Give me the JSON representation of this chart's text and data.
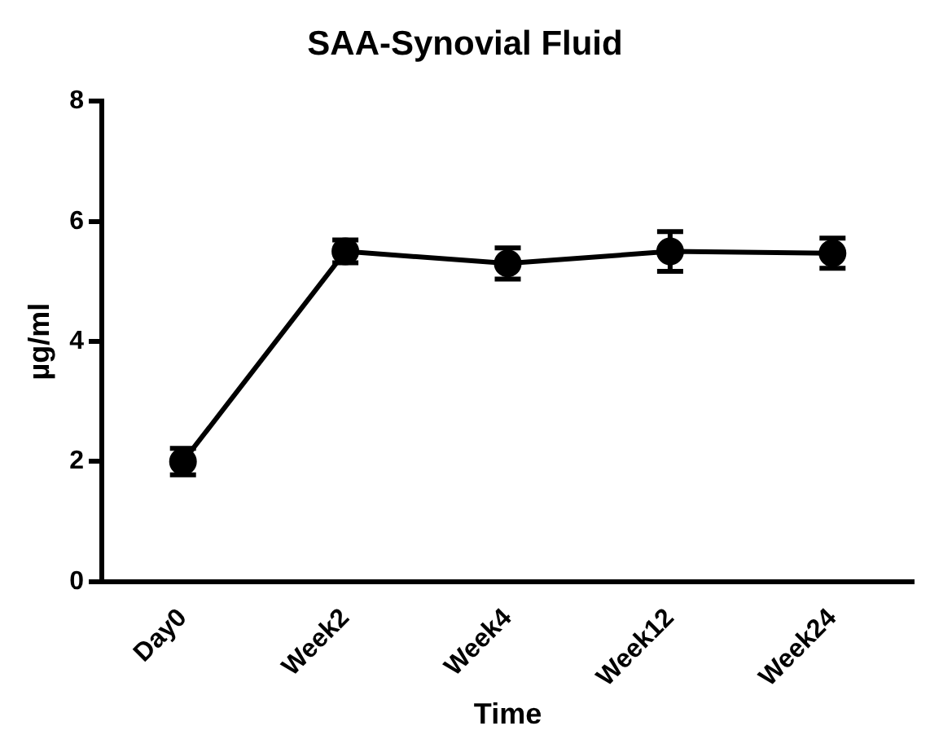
{
  "chart_data": {
    "type": "line",
    "title": "SAA-Synovial Fluid",
    "xlabel": "Time",
    "ylabel": "µg/ml",
    "categories": [
      "Day0",
      "Week2",
      "Week4",
      "Week12",
      "Week24"
    ],
    "series": [
      {
        "color": "#000000",
        "values": [
          2.0,
          5.5,
          5.3,
          5.5,
          5.47
        ],
        "errors": [
          0.22,
          0.19,
          0.26,
          0.33,
          0.25
        ]
      }
    ],
    "ylim": [
      0,
      8
    ],
    "yticks": [
      0,
      2,
      4,
      6,
      8
    ],
    "grid": false,
    "legend": false,
    "marker": "circle",
    "line_style": "solid"
  }
}
